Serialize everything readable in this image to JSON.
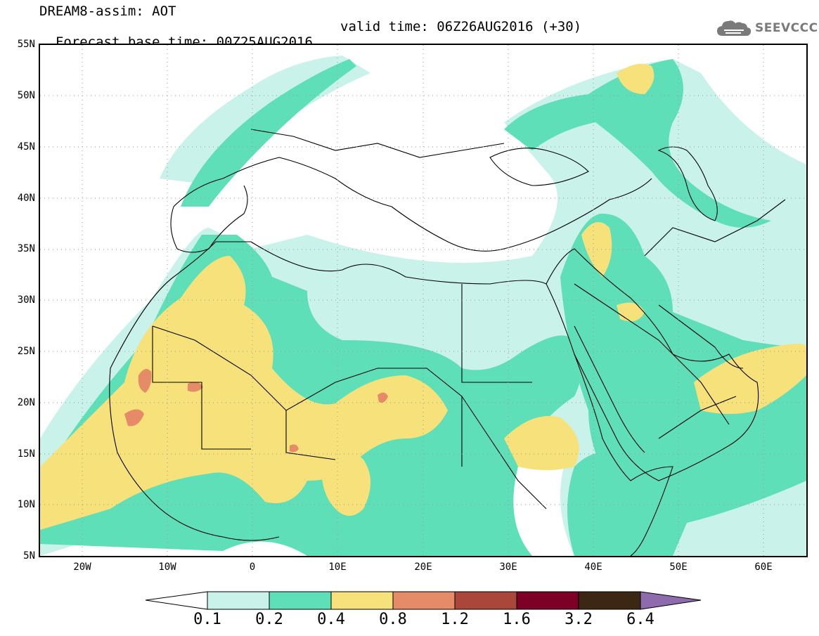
{
  "header": {
    "title_line1": "DREAM8-assim: AOT",
    "title_line2": "Forecast base time: 00Z25AUG2016",
    "valid_time": "valid time: 06Z26AUG2016 (+30)",
    "logo_text": "SEEVCCC"
  },
  "map": {
    "projection": "lat-lon",
    "lon_range": [
      -25,
      65
    ],
    "lat_range": [
      5,
      55
    ],
    "gridlines": "dotted",
    "lat_labels": [
      "55N",
      "50N",
      "45N",
      "40N",
      "35N",
      "30N",
      "25N",
      "20N",
      "15N",
      "10N",
      "5N"
    ],
    "lon_labels": [
      "20W",
      "10W",
      "0",
      "10E",
      "20E",
      "30E",
      "40E",
      "50E",
      "60E"
    ],
    "field": "aerosol optical thickness"
  },
  "colorbar": {
    "labels": [
      "0.1",
      "0.2",
      "0.4",
      "0.8",
      "1.2",
      "1.6",
      "3.2",
      "6.4"
    ],
    "colors": [
      "#ffffff",
      "#c8f2ea",
      "#5fdfb7",
      "#f7e17a",
      "#e58b68",
      "#a9483a",
      "#7d0026",
      "#3c2715",
      "#8e6bad"
    ],
    "extend": "both"
  },
  "colors": {
    "bin_0.1_0.2": "#c8f2ea",
    "bin_0.2_0.4": "#5fdfb7",
    "bin_0.4_0.8": "#f7e17a",
    "bin_0.8_1.2": "#e58b68",
    "coastline": "#000000"
  }
}
